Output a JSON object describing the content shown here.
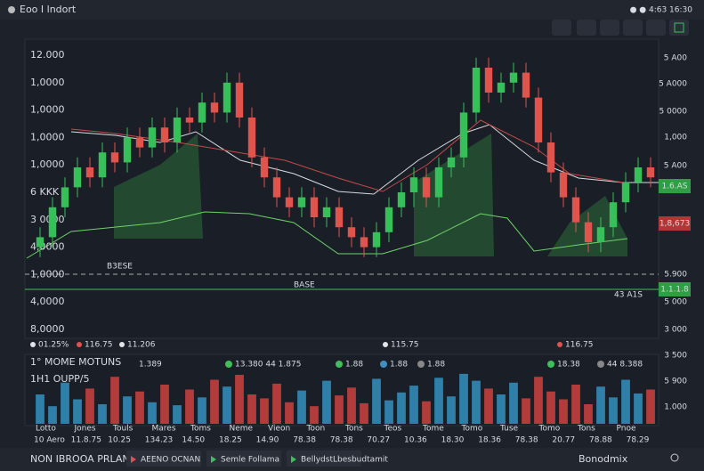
{
  "header": {
    "title": "Eoo I lndort",
    "status": "● ● 4:63 16:30"
  },
  "left_axis": [
    "12.000",
    "1,0000",
    "1,0000",
    "1,0000",
    "1,0000",
    "6 KKK",
    "3 0000",
    "4,0000",
    "1,0000",
    "4,0000",
    "8,0000"
  ],
  "right_axis": [
    "5 A00",
    "5 A000",
    "5 0000",
    "1,000",
    "5 A00",
    "5.900",
    "5 000",
    "3 000",
    "3 500",
    "5 900",
    "1.000"
  ],
  "price_tags": {
    "green": "1.6.AS",
    "red": "1,8,673",
    "level": "1.1.1.8"
  },
  "markers": {
    "line_label": "B3ESE",
    "level_label": "BASE",
    "level_right": "43 A1S"
  },
  "indicator_row": [
    {
      "text": "01.25%",
      "color": "#e2e4e8"
    },
    {
      "text": "116.75",
      "color": "#e05252"
    },
    {
      "text": "11.206",
      "color": "#e2e4e8"
    },
    {
      "text": "115.75",
      "color": "#e2e4e8"
    },
    {
      "text": "116.75",
      "color": "#e05252"
    }
  ],
  "volume_panel": {
    "title": "1° MOME MOTUNS",
    "subtitle": "1H1 OUPP/5",
    "stats": [
      "1.389",
      "13.380 44 1.875",
      "1.88",
      "1.88",
      "1.88",
      "18.38",
      "44 8.388"
    ]
  },
  "time_names": [
    "Lotto",
    "Jones",
    "Touls",
    "Mares",
    "Toms",
    "Neme",
    "Vieon",
    "Toon",
    "Tons",
    "Teos",
    "Tome",
    "Tomo",
    "Tuse",
    "Tomo",
    "Tons",
    "Pnoe"
  ],
  "time_values": [
    "10 Aero",
    "11.8.75",
    "10.25",
    "134.23",
    "14.50",
    "18.25",
    "14.90",
    "78.38",
    "78.38",
    "70.27",
    "10.36",
    "18.30",
    "18.36",
    "78.38",
    "20.77",
    "78.88",
    "78.29"
  ],
  "footer": {
    "account": "NON IBROOA PRLANR",
    "tabs": [
      "AEENO OCNAN",
      "Semle Follama",
      "Bellydst"
    ],
    "extra": "Lbesbudtamit",
    "right": "Bonodmix"
  },
  "prices": {
    "open": [
      8,
      12,
      24,
      32,
      40,
      36,
      46,
      42,
      52,
      48,
      56,
      50,
      60,
      58,
      66,
      62,
      74,
      60,
      44,
      36,
      28,
      24,
      28,
      20,
      24,
      16,
      12,
      8,
      14,
      24,
      30,
      36,
      28,
      40,
      44,
      62,
      80,
      70,
      74,
      78,
      68,
      50,
      38,
      28,
      18,
      10,
      16,
      26,
      34,
      40
    ],
    "close": [
      12,
      24,
      32,
      40,
      36,
      46,
      42,
      52,
      48,
      56,
      50,
      60,
      58,
      66,
      62,
      74,
      60,
      44,
      36,
      28,
      24,
      28,
      20,
      24,
      16,
      12,
      8,
      14,
      24,
      30,
      36,
      28,
      40,
      44,
      62,
      80,
      70,
      74,
      78,
      68,
      50,
      38,
      28,
      18,
      10,
      16,
      26,
      34,
      40,
      36
    ],
    "high": [
      16,
      28,
      36,
      44,
      44,
      50,
      50,
      56,
      56,
      60,
      60,
      64,
      64,
      70,
      70,
      78,
      78,
      64,
      48,
      40,
      32,
      32,
      32,
      28,
      28,
      20,
      16,
      18,
      28,
      34,
      40,
      40,
      44,
      48,
      66,
      84,
      84,
      78,
      82,
      82,
      72,
      54,
      42,
      32,
      22,
      20,
      30,
      38,
      44,
      44
    ],
    "low": [
      4,
      8,
      20,
      28,
      32,
      32,
      38,
      38,
      44,
      44,
      46,
      46,
      54,
      54,
      58,
      58,
      56,
      40,
      32,
      24,
      20,
      20,
      16,
      16,
      12,
      8,
      4,
      4,
      10,
      20,
      24,
      24,
      24,
      36,
      40,
      58,
      66,
      66,
      70,
      64,
      46,
      34,
      24,
      14,
      6,
      6,
      12,
      22,
      30,
      32
    ],
    "volume": [
      30,
      18,
      42,
      25,
      36,
      20,
      48,
      28,
      33,
      22,
      40,
      19,
      35,
      27,
      45,
      38,
      50,
      30,
      26,
      41,
      22,
      34,
      18,
      44,
      29,
      37,
      21,
      46,
      24,
      32,
      39,
      23,
      47,
      28,
      51,
      44,
      36,
      30,
      42,
      26,
      48,
      33,
      25,
      40,
      20,
      38,
      27,
      45,
      31,
      35
    ]
  }
}
